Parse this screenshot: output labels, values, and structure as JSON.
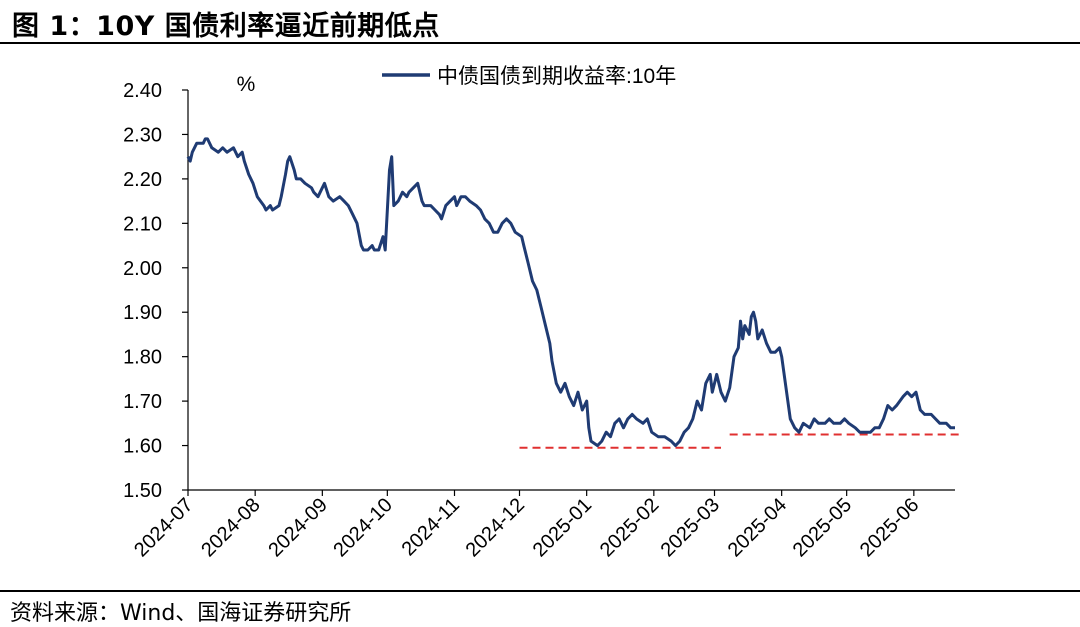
{
  "figure": {
    "title": "图 1：10Y 国债利率逼近前期低点",
    "source": "资料来源：Wind、国海证券研究所"
  },
  "chart_data": {
    "type": "line",
    "ylabel": "%",
    "ylim": [
      1.5,
      2.4
    ],
    "yticks": [
      "2.40",
      "2.30",
      "2.20",
      "2.10",
      "2.00",
      "1.90",
      "1.80",
      "1.70",
      "1.60",
      "1.50"
    ],
    "xticks": [
      "2024-07",
      "2024-08",
      "2024-09",
      "2024-10",
      "2024-11",
      "2024-12",
      "2025-01",
      "2025-02",
      "2025-03",
      "2025-04",
      "2025-05",
      "2025-06"
    ],
    "xlim": [
      "2024-07-01",
      "2025-06-20"
    ],
    "legend": {
      "placement": "top-center"
    },
    "grid": false,
    "series": [
      {
        "name": "中债国债到期收益率:10年",
        "color": "#1f3b73",
        "points": [
          [
            "2024-07-01",
            2.25
          ],
          [
            "2024-07-02",
            2.24
          ],
          [
            "2024-07-03",
            2.26
          ],
          [
            "2024-07-05",
            2.28
          ],
          [
            "2024-07-08",
            2.28
          ],
          [
            "2024-07-09",
            2.29
          ],
          [
            "2024-07-10",
            2.29
          ],
          [
            "2024-07-12",
            2.27
          ],
          [
            "2024-07-15",
            2.26
          ],
          [
            "2024-07-17",
            2.27
          ],
          [
            "2024-07-19",
            2.26
          ],
          [
            "2024-07-22",
            2.27
          ],
          [
            "2024-07-24",
            2.25
          ],
          [
            "2024-07-26",
            2.26
          ],
          [
            "2024-07-27",
            2.24
          ],
          [
            "2024-07-29",
            2.21
          ],
          [
            "2024-07-31",
            2.19
          ],
          [
            "2024-08-02",
            2.16
          ],
          [
            "2024-08-05",
            2.14
          ],
          [
            "2024-08-06",
            2.13
          ],
          [
            "2024-08-08",
            2.14
          ],
          [
            "2024-08-09",
            2.13
          ],
          [
            "2024-08-12",
            2.14
          ],
          [
            "2024-08-13",
            2.16
          ],
          [
            "2024-08-15",
            2.21
          ],
          [
            "2024-08-16",
            2.24
          ],
          [
            "2024-08-17",
            2.25
          ],
          [
            "2024-08-19",
            2.22
          ],
          [
            "2024-08-20",
            2.2
          ],
          [
            "2024-08-22",
            2.2
          ],
          [
            "2024-08-24",
            2.19
          ],
          [
            "2024-08-27",
            2.18
          ],
          [
            "2024-08-28",
            2.17
          ],
          [
            "2024-08-30",
            2.16
          ],
          [
            "2024-09-01",
            2.18
          ],
          [
            "2024-09-02",
            2.19
          ],
          [
            "2024-09-04",
            2.16
          ],
          [
            "2024-09-06",
            2.15
          ],
          [
            "2024-09-09",
            2.16
          ],
          [
            "2024-09-11",
            2.15
          ],
          [
            "2024-09-13",
            2.14
          ],
          [
            "2024-09-15",
            2.12
          ],
          [
            "2024-09-17",
            2.1
          ],
          [
            "2024-09-19",
            2.05
          ],
          [
            "2024-09-20",
            2.04
          ],
          [
            "2024-09-22",
            2.04
          ],
          [
            "2024-09-24",
            2.05
          ],
          [
            "2024-09-25",
            2.04
          ],
          [
            "2024-09-27",
            2.04
          ],
          [
            "2024-09-29",
            2.07
          ],
          [
            "2024-09-30",
            2.04
          ],
          [
            "2024-10-02",
            2.22
          ],
          [
            "2024-10-03",
            2.25
          ],
          [
            "2024-10-04",
            2.14
          ],
          [
            "2024-10-06",
            2.15
          ],
          [
            "2024-10-08",
            2.17
          ],
          [
            "2024-10-10",
            2.16
          ],
          [
            "2024-10-11",
            2.17
          ],
          [
            "2024-10-13",
            2.18
          ],
          [
            "2024-10-15",
            2.19
          ],
          [
            "2024-10-17",
            2.15
          ],
          [
            "2024-10-18",
            2.14
          ],
          [
            "2024-10-21",
            2.14
          ],
          [
            "2024-10-23",
            2.13
          ],
          [
            "2024-10-25",
            2.12
          ],
          [
            "2024-10-26",
            2.11
          ],
          [
            "2024-10-28",
            2.14
          ],
          [
            "2024-10-30",
            2.15
          ],
          [
            "2024-11-01",
            2.16
          ],
          [
            "2024-11-02",
            2.14
          ],
          [
            "2024-11-04",
            2.16
          ],
          [
            "2024-11-06",
            2.16
          ],
          [
            "2024-11-08",
            2.15
          ],
          [
            "2024-11-11",
            2.14
          ],
          [
            "2024-11-13",
            2.13
          ],
          [
            "2024-11-15",
            2.11
          ],
          [
            "2024-11-17",
            2.1
          ],
          [
            "2024-11-19",
            2.08
          ],
          [
            "2024-11-21",
            2.08
          ],
          [
            "2024-11-23",
            2.1
          ],
          [
            "2024-11-25",
            2.11
          ],
          [
            "2024-11-27",
            2.1
          ],
          [
            "2024-11-29",
            2.08
          ],
          [
            "2024-12-02",
            2.07
          ],
          [
            "2024-12-03",
            2.05
          ],
          [
            "2024-12-05",
            2.01
          ],
          [
            "2024-12-07",
            1.97
          ],
          [
            "2024-12-09",
            1.95
          ],
          [
            "2024-12-11",
            1.91
          ],
          [
            "2024-12-13",
            1.87
          ],
          [
            "2024-12-15",
            1.83
          ],
          [
            "2024-12-16",
            1.79
          ],
          [
            "2024-12-18",
            1.74
          ],
          [
            "2024-12-20",
            1.72
          ],
          [
            "2024-12-22",
            1.74
          ],
          [
            "2024-12-24",
            1.71
          ],
          [
            "2024-12-26",
            1.69
          ],
          [
            "2024-12-28",
            1.72
          ],
          [
            "2024-12-30",
            1.68
          ],
          [
            "2025-01-01",
            1.7
          ],
          [
            "2025-01-02",
            1.64
          ],
          [
            "2025-01-03",
            1.61
          ],
          [
            "2025-01-06",
            1.6
          ],
          [
            "2025-01-08",
            1.61
          ],
          [
            "2025-01-10",
            1.63
          ],
          [
            "2025-01-12",
            1.62
          ],
          [
            "2025-01-14",
            1.65
          ],
          [
            "2025-01-16",
            1.66
          ],
          [
            "2025-01-18",
            1.64
          ],
          [
            "2025-01-20",
            1.66
          ],
          [
            "2025-01-22",
            1.67
          ],
          [
            "2025-01-24",
            1.66
          ],
          [
            "2025-01-27",
            1.65
          ],
          [
            "2025-01-29",
            1.66
          ],
          [
            "2025-01-31",
            1.63
          ],
          [
            "2025-02-03",
            1.62
          ],
          [
            "2025-02-06",
            1.62
          ],
          [
            "2025-02-09",
            1.61
          ],
          [
            "2025-02-11",
            1.6
          ],
          [
            "2025-02-13",
            1.61
          ],
          [
            "2025-02-15",
            1.63
          ],
          [
            "2025-02-17",
            1.64
          ],
          [
            "2025-02-19",
            1.66
          ],
          [
            "2025-02-21",
            1.7
          ],
          [
            "2025-02-23",
            1.68
          ],
          [
            "2025-02-25",
            1.74
          ],
          [
            "2025-02-27",
            1.76
          ],
          [
            "2025-02-28",
            1.72
          ],
          [
            "2025-03-02",
            1.76
          ],
          [
            "2025-03-04",
            1.72
          ],
          [
            "2025-03-06",
            1.7
          ],
          [
            "2025-03-08",
            1.73
          ],
          [
            "2025-03-10",
            1.8
          ],
          [
            "2025-03-12",
            1.82
          ],
          [
            "2025-03-13",
            1.88
          ],
          [
            "2025-03-14",
            1.84
          ],
          [
            "2025-03-15",
            1.87
          ],
          [
            "2025-03-17",
            1.85
          ],
          [
            "2025-03-18",
            1.89
          ],
          [
            "2025-03-19",
            1.9
          ],
          [
            "2025-03-20",
            1.88
          ],
          [
            "2025-03-21",
            1.84
          ],
          [
            "2025-03-23",
            1.86
          ],
          [
            "2025-03-25",
            1.83
          ],
          [
            "2025-03-27",
            1.81
          ],
          [
            "2025-03-29",
            1.81
          ],
          [
            "2025-03-31",
            1.82
          ],
          [
            "2025-04-01",
            1.8
          ],
          [
            "2025-04-03",
            1.73
          ],
          [
            "2025-04-05",
            1.66
          ],
          [
            "2025-04-07",
            1.64
          ],
          [
            "2025-04-09",
            1.63
          ],
          [
            "2025-04-11",
            1.65
          ],
          [
            "2025-04-14",
            1.64
          ],
          [
            "2025-04-16",
            1.66
          ],
          [
            "2025-04-18",
            1.65
          ],
          [
            "2025-04-21",
            1.65
          ],
          [
            "2025-04-23",
            1.66
          ],
          [
            "2025-04-25",
            1.65
          ],
          [
            "2025-04-28",
            1.65
          ],
          [
            "2025-04-30",
            1.66
          ],
          [
            "2025-05-02",
            1.65
          ],
          [
            "2025-05-05",
            1.64
          ],
          [
            "2025-05-07",
            1.63
          ],
          [
            "2025-05-09",
            1.63
          ],
          [
            "2025-05-12",
            1.63
          ],
          [
            "2025-05-14",
            1.64
          ],
          [
            "2025-05-16",
            1.64
          ],
          [
            "2025-05-18",
            1.66
          ],
          [
            "2025-05-20",
            1.69
          ],
          [
            "2025-05-22",
            1.68
          ],
          [
            "2025-05-24",
            1.69
          ],
          [
            "2025-05-27",
            1.71
          ],
          [
            "2025-05-29",
            1.72
          ],
          [
            "2025-05-31",
            1.71
          ],
          [
            "2025-06-02",
            1.72
          ],
          [
            "2025-06-04",
            1.68
          ],
          [
            "2025-06-06",
            1.67
          ],
          [
            "2025-06-09",
            1.67
          ],
          [
            "2025-06-11",
            1.66
          ],
          [
            "2025-06-13",
            1.65
          ],
          [
            "2025-06-16",
            1.65
          ],
          [
            "2025-06-18",
            1.64
          ],
          [
            "2025-06-20",
            1.64
          ]
        ]
      }
    ],
    "reference_lines": [
      {
        "name": "january-low-line",
        "y": 1.595,
        "x_start": "2024-12-01",
        "x_end": "2025-03-04",
        "color": "#e03030",
        "style": "dashed"
      },
      {
        "name": "april-low-line",
        "y": 1.625,
        "x_start": "2025-03-08",
        "x_end": "2025-06-22",
        "color": "#e03030",
        "style": "dashed"
      }
    ]
  }
}
